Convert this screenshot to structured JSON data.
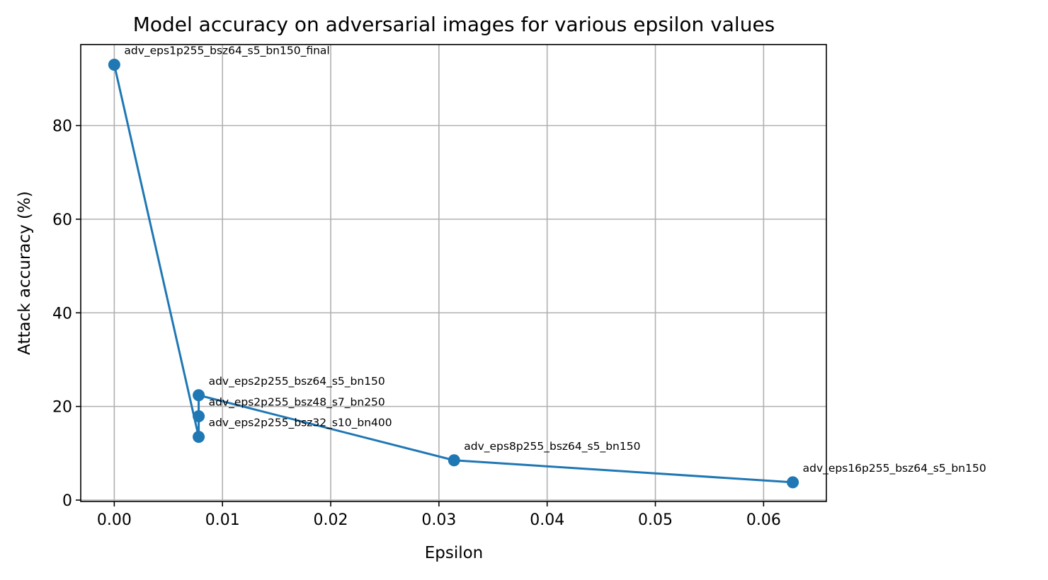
{
  "chart_data": {
    "type": "line",
    "title": "Model accuracy on adversarial images for various epsilon values",
    "xlabel": "Epsilon",
    "ylabel": "Attack accuracy (%)",
    "xlim": [
      -0.0031,
      0.0658
    ],
    "ylim": [
      -0.3,
      97.3
    ],
    "xticks": [
      0.0,
      0.01,
      0.02,
      0.03,
      0.04,
      0.05,
      0.06
    ],
    "xtick_labels": [
      "0.00",
      "0.01",
      "0.02",
      "0.03",
      "0.04",
      "0.05",
      "0.06"
    ],
    "yticks": [
      0,
      20,
      40,
      60,
      80
    ],
    "ytick_labels": [
      "0",
      "20",
      "40",
      "60",
      "80"
    ],
    "grid": true,
    "line_color": "#1f77b4",
    "series": [
      {
        "points": [
          {
            "x": 0.0,
            "y": 93.0,
            "label": "adv_eps1p255_bsz64_s5_bn150_final"
          },
          {
            "x": 0.0078,
            "y": 13.5,
            "label": "adv_eps2p255_bsz32_s10_bn400"
          },
          {
            "x": 0.0078,
            "y": 17.9,
            "label": "adv_eps2p255_bsz48_s7_bn250"
          },
          {
            "x": 0.0078,
            "y": 22.4,
            "label": "adv_eps2p255_bsz64_s5_bn150"
          },
          {
            "x": 0.0314,
            "y": 8.5,
            "label": "adv_eps8p255_bsz64_s5_bn150"
          },
          {
            "x": 0.0627,
            "y": 3.8,
            "label": "adv_eps16p255_bsz64_s5_bn150"
          }
        ]
      }
    ]
  }
}
